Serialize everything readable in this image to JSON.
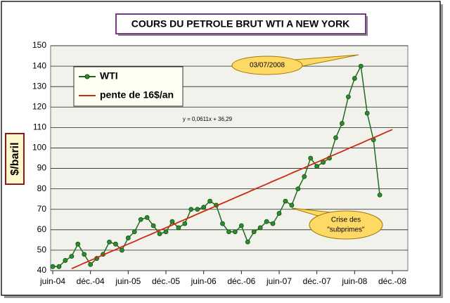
{
  "chart_data": {
    "type": "line",
    "title": "COURS DU PETROLE BRUT WTI A NEW YORK",
    "y_label": "$/baril",
    "categories": [
      "juin-04",
      null,
      null,
      null,
      null,
      null,
      "déc.-04",
      null,
      null,
      null,
      null,
      null,
      "juin-05",
      null,
      null,
      null,
      null,
      null,
      "déc.-05",
      null,
      null,
      null,
      null,
      null,
      "juin-06",
      null,
      null,
      null,
      null,
      null,
      "déc.-06",
      null,
      null,
      null,
      null,
      null,
      "juin-07",
      null,
      null,
      null,
      null,
      null,
      "déc.-07",
      null,
      null,
      null,
      null,
      null,
      "juin-08",
      null,
      null,
      null,
      null,
      null,
      "déc.-08"
    ],
    "series": [
      {
        "name": "WTI",
        "color": "#1f6b1f",
        "marker": true,
        "values": [
          42,
          42,
          45,
          47,
          53,
          48,
          43,
          46,
          48,
          54,
          53,
          50,
          56,
          59,
          65,
          66,
          62,
          58,
          59,
          64,
          61,
          63,
          70,
          70,
          71,
          74,
          72,
          63,
          59,
          59,
          62,
          54,
          59,
          61,
          64,
          63,
          68,
          74,
          72,
          80,
          86,
          95,
          91,
          93,
          95,
          105,
          112,
          125,
          134,
          140,
          117,
          104,
          77,
          null,
          null
        ]
      },
      {
        "name": "pente de 16$/an",
        "color": "#cc2a10",
        "marker": false,
        "values": [
          null,
          null,
          null,
          41.0,
          42.3,
          43.7,
          45.0,
          46.3,
          47.7,
          49.0,
          50.3,
          51.7,
          53.0,
          54.3,
          55.7,
          57.0,
          58.3,
          59.7,
          61.0,
          62.3,
          63.7,
          65.0,
          66.3,
          67.7,
          69.0,
          70.3,
          71.7,
          73.0,
          74.3,
          75.7,
          77.0,
          78.3,
          79.7,
          81.0,
          82.3,
          83.7,
          85.0,
          86.3,
          87.7,
          89.0,
          90.3,
          91.7,
          93.0,
          94.3,
          95.7,
          97.0,
          98.3,
          99.7,
          101.0,
          102.3,
          103.7,
          105.0,
          106.3,
          107.7,
          109.0
        ]
      }
    ],
    "ylim": [
      40,
      150
    ],
    "yticks": [
      40,
      50,
      60,
      70,
      80,
      90,
      100,
      110,
      120,
      130,
      140,
      150
    ],
    "grid": true,
    "legend": "top-left",
    "annotations": {
      "peak": "03/07/2008",
      "crisis": [
        "Crise des",
        "\"subprimes\""
      ],
      "equation": "y = 0,0611x + 36,29"
    }
  }
}
